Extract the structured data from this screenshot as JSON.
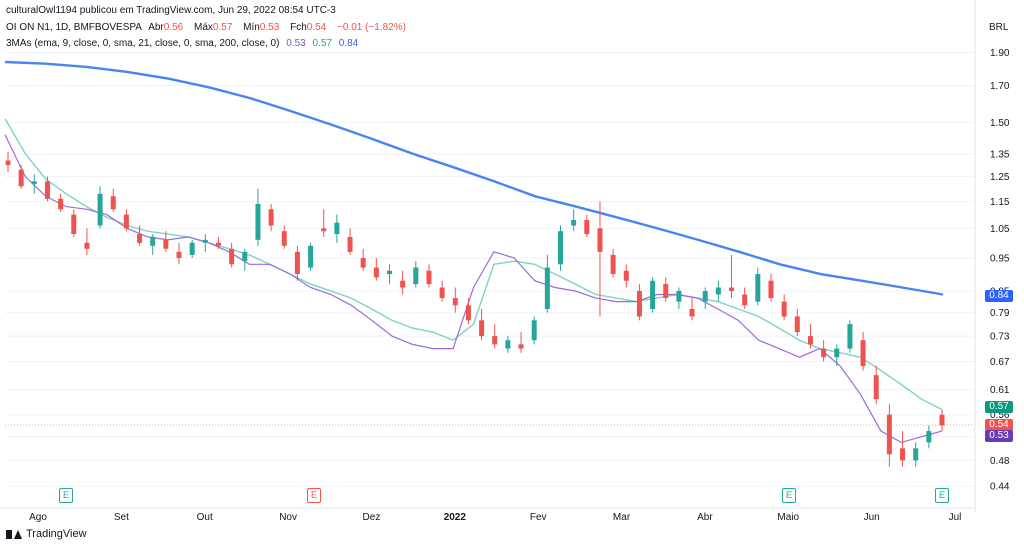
{
  "header": {
    "publisher": "culturalOwl1194 publicou em TradingView.com, Jun 29, 2022 08:54 UTC-3",
    "symbol": "OI ON N1, 1D, BMFBOVESPA",
    "open_label": "Abr",
    "open_value": "0.56",
    "high_label": "Máx",
    "high_value": "0.57",
    "low_label": "Mín",
    "low_value": "0.53",
    "close_label": "Fch",
    "close_value": "0.54",
    "change": "−0.01 (−1.82%)",
    "mas_label": "3MAs (ema, 9, close, 0, sma, 21, close, 0, sma, 200, close, 0)",
    "ma1_value": "0.53",
    "ma2_value": "0.57",
    "ma3_value": "0.84"
  },
  "currency": "BRL",
  "price_tags": {
    "ma200": "0.84",
    "ma21": "0.57",
    "close": "0.54",
    "ema9": "0.53"
  },
  "earnings_badges": [
    "E",
    "E",
    "E",
    "E"
  ],
  "footer": {
    "brand": "TradingView"
  },
  "colors": {
    "up": "#26a69a",
    "down": "#ef5350",
    "ema9": "#9c6ade",
    "sma21": "#7ed3c4",
    "sma200": "#4a84f0",
    "ma200_tag": "#2962ff",
    "ma21_tag": "#089981",
    "close_tag": "#ef5350",
    "ema9_tag": "#673ab7"
  },
  "chart_data": {
    "type": "candlestick",
    "yticks": [
      "1.90",
      "1.70",
      "1.50",
      "1.35",
      "1.25",
      "1.15",
      "1.05",
      "0.95",
      "0.85",
      "0.79",
      "0.73",
      "0.67",
      "0.61",
      "0.56",
      "0.52",
      "0.48",
      "0.44"
    ],
    "yscale": "log",
    "ylim": [
      0.42,
      2.05
    ],
    "xticks": [
      "Ago",
      "Set",
      "Out",
      "Nov",
      "Dez",
      "2022",
      "Fev",
      "Mar",
      "Abr",
      "Maio",
      "Jun",
      "Jul"
    ],
    "sma200": [
      1.84,
      1.83,
      1.81,
      1.78,
      1.74,
      1.69,
      1.63,
      1.56,
      1.49,
      1.42,
      1.35,
      1.29,
      1.23,
      1.17,
      1.13,
      1.09,
      1.05,
      1.01,
      0.97,
      0.93,
      0.9,
      0.88,
      0.86,
      0.84
    ],
    "sma21": [
      1.52,
      1.35,
      1.24,
      1.18,
      1.13,
      1.09,
      1.06,
      1.04,
      1.03,
      1.02,
      1.0,
      0.98,
      0.96,
      0.93,
      0.9,
      0.87,
      0.85,
      0.83,
      0.8,
      0.77,
      0.75,
      0.74,
      0.72,
      0.76,
      0.93,
      0.94,
      0.93,
      0.9,
      0.87,
      0.84,
      0.83,
      0.82,
      0.83,
      0.84,
      0.83,
      0.82,
      0.8,
      0.78,
      0.75,
      0.72,
      0.7,
      0.69,
      0.68,
      0.65,
      0.62,
      0.59,
      0.57
    ],
    "ema9": [
      1.44,
      1.25,
      1.17,
      1.13,
      1.12,
      1.1,
      1.05,
      1.02,
      1.01,
      1.02,
      1.0,
      0.97,
      0.93,
      0.93,
      0.9,
      0.86,
      0.84,
      0.81,
      0.77,
      0.73,
      0.71,
      0.7,
      0.7,
      0.86,
      0.97,
      0.95,
      0.88,
      0.86,
      0.85,
      0.83,
      0.82,
      0.82,
      0.84,
      0.84,
      0.83,
      0.8,
      0.77,
      0.72,
      0.7,
      0.68,
      0.7,
      0.66,
      0.6,
      0.53,
      0.51,
      0.52,
      0.53
    ],
    "candles": [
      {
        "o": 1.32,
        "h": 1.36,
        "l": 1.27,
        "c": 1.3
      },
      {
        "o": 1.28,
        "h": 1.3,
        "l": 1.2,
        "c": 1.21
      },
      {
        "o": 1.22,
        "h": 1.26,
        "l": 1.18,
        "c": 1.23
      },
      {
        "o": 1.23,
        "h": 1.25,
        "l": 1.15,
        "c": 1.16
      },
      {
        "o": 1.16,
        "h": 1.18,
        "l": 1.11,
        "c": 1.12
      },
      {
        "o": 1.1,
        "h": 1.12,
        "l": 1.02,
        "c": 1.03
      },
      {
        "o": 1.0,
        "h": 1.05,
        "l": 0.96,
        "c": 0.98
      },
      {
        "o": 1.06,
        "h": 1.21,
        "l": 1.05,
        "c": 1.18
      },
      {
        "o": 1.17,
        "h": 1.2,
        "l": 1.11,
        "c": 1.12
      },
      {
        "o": 1.1,
        "h": 1.12,
        "l": 1.04,
        "c": 1.05
      },
      {
        "o": 1.03,
        "h": 1.06,
        "l": 0.99,
        "c": 1.0
      },
      {
        "o": 0.99,
        "h": 1.03,
        "l": 0.96,
        "c": 1.02
      },
      {
        "o": 1.01,
        "h": 1.04,
        "l": 0.97,
        "c": 0.98
      },
      {
        "o": 0.97,
        "h": 1.0,
        "l": 0.93,
        "c": 0.95
      },
      {
        "o": 0.96,
        "h": 1.01,
        "l": 0.95,
        "c": 1.0
      },
      {
        "o": 1.0,
        "h": 1.03,
        "l": 0.97,
        "c": 1.01
      },
      {
        "o": 1.0,
        "h": 1.02,
        "l": 0.98,
        "c": 0.99
      },
      {
        "o": 0.98,
        "h": 1.0,
        "l": 0.92,
        "c": 0.93
      },
      {
        "o": 0.94,
        "h": 0.98,
        "l": 0.91,
        "c": 0.97
      },
      {
        "o": 1.01,
        "h": 1.2,
        "l": 0.99,
        "c": 1.14
      },
      {
        "o": 1.12,
        "h": 1.14,
        "l": 1.04,
        "c": 1.06
      },
      {
        "o": 1.04,
        "h": 1.06,
        "l": 0.98,
        "c": 0.99
      },
      {
        "o": 0.97,
        "h": 0.99,
        "l": 0.88,
        "c": 0.9
      },
      {
        "o": 0.92,
        "h": 1.0,
        "l": 0.91,
        "c": 0.99
      },
      {
        "o": 1.05,
        "h": 1.12,
        "l": 1.02,
        "c": 1.04
      },
      {
        "o": 1.03,
        "h": 1.1,
        "l": 1.0,
        "c": 1.07
      },
      {
        "o": 1.02,
        "h": 1.05,
        "l": 0.96,
        "c": 0.97
      },
      {
        "o": 0.95,
        "h": 0.98,
        "l": 0.91,
        "c": 0.92
      },
      {
        "o": 0.92,
        "h": 0.95,
        "l": 0.88,
        "c": 0.89
      },
      {
        "o": 0.9,
        "h": 0.93,
        "l": 0.87,
        "c": 0.91
      },
      {
        "o": 0.88,
        "h": 0.91,
        "l": 0.84,
        "c": 0.86
      },
      {
        "o": 0.87,
        "h": 0.94,
        "l": 0.86,
        "c": 0.92
      },
      {
        "o": 0.91,
        "h": 0.93,
        "l": 0.86,
        "c": 0.87
      },
      {
        "o": 0.86,
        "h": 0.88,
        "l": 0.82,
        "c": 0.83
      },
      {
        "o": 0.83,
        "h": 0.86,
        "l": 0.79,
        "c": 0.81
      },
      {
        "o": 0.81,
        "h": 0.83,
        "l": 0.76,
        "c": 0.77
      },
      {
        "o": 0.77,
        "h": 0.8,
        "l": 0.72,
        "c": 0.73
      },
      {
        "o": 0.73,
        "h": 0.76,
        "l": 0.7,
        "c": 0.71
      },
      {
        "o": 0.7,
        "h": 0.73,
        "l": 0.69,
        "c": 0.72
      },
      {
        "o": 0.71,
        "h": 0.74,
        "l": 0.69,
        "c": 0.7
      },
      {
        "o": 0.72,
        "h": 0.78,
        "l": 0.71,
        "c": 0.77
      },
      {
        "o": 0.8,
        "h": 0.96,
        "l": 0.79,
        "c": 0.92
      },
      {
        "o": 0.93,
        "h": 1.06,
        "l": 0.91,
        "c": 1.04
      },
      {
        "o": 1.06,
        "h": 1.12,
        "l": 1.04,
        "c": 1.08
      },
      {
        "o": 1.08,
        "h": 1.1,
        "l": 1.02,
        "c": 1.03
      },
      {
        "o": 1.05,
        "h": 1.15,
        "l": 0.78,
        "c": 0.97
      },
      {
        "o": 0.96,
        "h": 0.98,
        "l": 0.89,
        "c": 0.9
      },
      {
        "o": 0.91,
        "h": 0.93,
        "l": 0.86,
        "c": 0.88
      },
      {
        "o": 0.85,
        "h": 0.87,
        "l": 0.77,
        "c": 0.78
      },
      {
        "o": 0.8,
        "h": 0.89,
        "l": 0.79,
        "c": 0.88
      },
      {
        "o": 0.87,
        "h": 0.89,
        "l": 0.82,
        "c": 0.83
      },
      {
        "o": 0.82,
        "h": 0.86,
        "l": 0.8,
        "c": 0.85
      },
      {
        "o": 0.8,
        "h": 0.83,
        "l": 0.77,
        "c": 0.78
      },
      {
        "o": 0.82,
        "h": 0.86,
        "l": 0.8,
        "c": 0.85
      },
      {
        "o": 0.84,
        "h": 0.88,
        "l": 0.82,
        "c": 0.86
      },
      {
        "o": 0.86,
        "h": 0.96,
        "l": 0.83,
        "c": 0.85
      },
      {
        "o": 0.84,
        "h": 0.86,
        "l": 0.8,
        "c": 0.81
      },
      {
        "o": 0.82,
        "h": 0.92,
        "l": 0.81,
        "c": 0.9
      },
      {
        "o": 0.88,
        "h": 0.9,
        "l": 0.82,
        "c": 0.83
      },
      {
        "o": 0.82,
        "h": 0.84,
        "l": 0.77,
        "c": 0.78
      },
      {
        "o": 0.78,
        "h": 0.8,
        "l": 0.73,
        "c": 0.74
      },
      {
        "o": 0.73,
        "h": 0.76,
        "l": 0.7,
        "c": 0.71
      },
      {
        "o": 0.7,
        "h": 0.72,
        "l": 0.67,
        "c": 0.68
      },
      {
        "o": 0.68,
        "h": 0.71,
        "l": 0.66,
        "c": 0.7
      },
      {
        "o": 0.7,
        "h": 0.77,
        "l": 0.69,
        "c": 0.76
      },
      {
        "o": 0.72,
        "h": 0.74,
        "l": 0.65,
        "c": 0.66
      },
      {
        "o": 0.64,
        "h": 0.66,
        "l": 0.58,
        "c": 0.59
      },
      {
        "o": 0.56,
        "h": 0.58,
        "l": 0.47,
        "c": 0.49
      },
      {
        "o": 0.5,
        "h": 0.53,
        "l": 0.47,
        "c": 0.48
      },
      {
        "o": 0.48,
        "h": 0.51,
        "l": 0.47,
        "c": 0.5
      },
      {
        "o": 0.51,
        "h": 0.54,
        "l": 0.5,
        "c": 0.53
      },
      {
        "o": 0.56,
        "h": 0.57,
        "l": 0.53,
        "c": 0.54
      }
    ]
  }
}
